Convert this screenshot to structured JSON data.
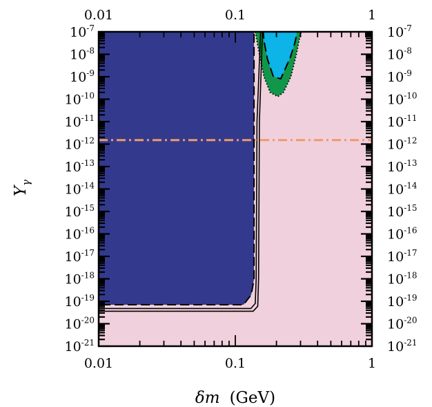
{
  "chart_data": {
    "type": "area",
    "title": "",
    "xlabel": {
      "symbol": "δm",
      "unit": "(GeV)"
    },
    "ylabel": {
      "symbol": "Y",
      "subscript": "γ"
    },
    "x_scale": "log",
    "y_scale": "log",
    "xlim": [
      0.01,
      1
    ],
    "ylim": [
      1e-21,
      1e-07
    ],
    "x_ticks": [
      {
        "value": 0.01,
        "label": "0.01"
      },
      {
        "value": 0.1,
        "label": "0.1"
      },
      {
        "value": 1,
        "label": "1"
      }
    ],
    "y_ticks": [
      {
        "value": 1e-07,
        "base": "10",
        "exp": "-7"
      },
      {
        "value": 1e-08,
        "base": "10",
        "exp": "-8"
      },
      {
        "value": 1e-09,
        "base": "10",
        "exp": "-9"
      },
      {
        "value": 1e-10,
        "base": "10",
        "exp": "-10"
      },
      {
        "value": 1e-11,
        "base": "10",
        "exp": "-11"
      },
      {
        "value": 1e-12,
        "base": "10",
        "exp": "-12"
      },
      {
        "value": 1e-13,
        "base": "10",
        "exp": "-13"
      },
      {
        "value": 1e-14,
        "base": "10",
        "exp": "-14"
      },
      {
        "value": 1e-15,
        "base": "10",
        "exp": "-15"
      },
      {
        "value": 1e-16,
        "base": "10",
        "exp": "-16"
      },
      {
        "value": 1e-17,
        "base": "10",
        "exp": "-17"
      },
      {
        "value": 1e-18,
        "base": "10",
        "exp": "-18"
      },
      {
        "value": 1e-19,
        "base": "10",
        "exp": "-19"
      },
      {
        "value": 1e-20,
        "base": "10",
        "exp": "-20"
      },
      {
        "value": 1e-21,
        "base": "10",
        "exp": "-21"
      }
    ],
    "background_color": "#f0d0dc",
    "regions": [
      {
        "fill": "#333a8e",
        "stroke": "#000000",
        "stroke_style": "dashed",
        "points": [
          [
            0.01,
            1e-07
          ],
          [
            0.137,
            1e-07
          ],
          [
            0.137,
            1e-18
          ],
          [
            0.131,
            2e-19
          ],
          [
            0.115,
            7e-20
          ],
          [
            0.01,
            7e-20
          ]
        ]
      },
      {
        "fill": "#12964a",
        "stroke": "#000000",
        "stroke_style": "dotted",
        "points": [
          [
            0.14,
            1e-07
          ],
          [
            0.303,
            1e-07
          ],
          [
            0.295,
            5e-08
          ],
          [
            0.28,
            1e-08
          ],
          [
            0.255,
            1e-09
          ],
          [
            0.225,
            2e-10
          ],
          [
            0.205,
            1.3e-10
          ],
          [
            0.18,
            2e-10
          ],
          [
            0.162,
            1e-09
          ],
          [
            0.15,
            1e-08
          ]
        ]
      },
      {
        "fill": "#0cb4e8",
        "stroke": "#000000",
        "stroke_style": "dashed",
        "points": [
          [
            0.16,
            1e-07
          ],
          [
            0.284,
            1e-07
          ],
          [
            0.272,
            3e-08
          ],
          [
            0.252,
            7e-09
          ],
          [
            0.215,
            8e-10
          ],
          [
            0.19,
            1e-09
          ],
          [
            0.172,
            6e-09
          ],
          [
            0.162,
            4e-08
          ]
        ]
      }
    ],
    "curves": [
      {
        "stroke": "#000000",
        "stroke_style": "solid",
        "points": [
          [
            0.01,
            3.6e-20
          ],
          [
            0.135,
            3.6e-20
          ],
          [
            0.146,
            6e-20
          ],
          [
            0.148,
            1e-18
          ],
          [
            0.15,
            1e-11
          ],
          [
            0.158,
            1e-07
          ]
        ]
      },
      {
        "stroke": "#000000",
        "stroke_style": "solid",
        "points": [
          [
            0.01,
            4.8e-20
          ],
          [
            0.13,
            4.8e-20
          ],
          [
            0.14,
            8e-20
          ],
          [
            0.142,
            1e-18
          ],
          [
            0.144,
            1e-11
          ],
          [
            0.153,
            1e-07
          ]
        ]
      },
      {
        "stroke": "#ee9a6a",
        "stroke_style": "dash-dot",
        "points": [
          [
            0.01,
            1.5e-12
          ],
          [
            1,
            1.5e-12
          ]
        ]
      }
    ]
  }
}
